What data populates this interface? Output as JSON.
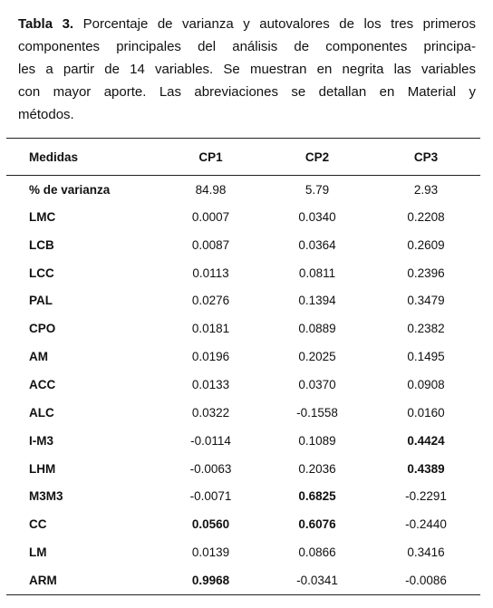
{
  "caption": {
    "label": "Tabla 3.",
    "lines": [
      "Porcentaje de varianza y autovalores de los tres primeros",
      "componentes principales del análisis de componentes principa-",
      "les a partir de 14 variables. Se muestran en negrita las variables",
      "con mayor aporte. Las abreviaciones se detallan en Material y",
      "métodos."
    ]
  },
  "table": {
    "header": [
      "Medidas",
      "CP1",
      "CP2",
      "CP3"
    ],
    "rows": [
      {
        "label": "% de varianza",
        "cells": [
          "84.98",
          "5.79",
          "2.93"
        ],
        "bold": []
      },
      {
        "label": "LMC",
        "cells": [
          "0.0007",
          "0.0340",
          "0.2208"
        ],
        "bold": []
      },
      {
        "label": "LCB",
        "cells": [
          "0.0087",
          "0.0364",
          "0.2609"
        ],
        "bold": []
      },
      {
        "label": "LCC",
        "cells": [
          "0.0113",
          "0.0811",
          "0.2396"
        ],
        "bold": []
      },
      {
        "label": "PAL",
        "cells": [
          "0.0276",
          "0.1394",
          "0.3479"
        ],
        "bold": []
      },
      {
        "label": "CPO",
        "cells": [
          "0.0181",
          "0.0889",
          "0.2382"
        ],
        "bold": []
      },
      {
        "label": "AM",
        "cells": [
          "0.0196",
          "0.2025",
          "0.1495"
        ],
        "bold": []
      },
      {
        "label": "ACC",
        "cells": [
          "0.0133",
          "0.0370",
          "0.0908"
        ],
        "bold": []
      },
      {
        "label": "ALC",
        "cells": [
          "0.0322",
          "-0.1558",
          "0.0160"
        ],
        "bold": []
      },
      {
        "label": "I-M3",
        "cells": [
          "-0.0114",
          "0.1089",
          "0.4424"
        ],
        "bold": [
          2
        ]
      },
      {
        "label": "LHM",
        "cells": [
          "-0.0063",
          "0.2036",
          "0.4389"
        ],
        "bold": [
          2
        ]
      },
      {
        "label": "M3M3",
        "cells": [
          "-0.0071",
          "0.6825",
          "-0.2291"
        ],
        "bold": [
          1
        ]
      },
      {
        "label": "CC",
        "cells": [
          "0.0560",
          "0.6076",
          "-0.2440"
        ],
        "bold": [
          0,
          1
        ]
      },
      {
        "label": "LM",
        "cells": [
          "0.0139",
          "0.0866",
          "0.3416"
        ],
        "bold": []
      },
      {
        "label": "ARM",
        "cells": [
          "0.9968",
          "-0.0341",
          "-0.0086"
        ],
        "bold": [
          0
        ]
      }
    ]
  }
}
